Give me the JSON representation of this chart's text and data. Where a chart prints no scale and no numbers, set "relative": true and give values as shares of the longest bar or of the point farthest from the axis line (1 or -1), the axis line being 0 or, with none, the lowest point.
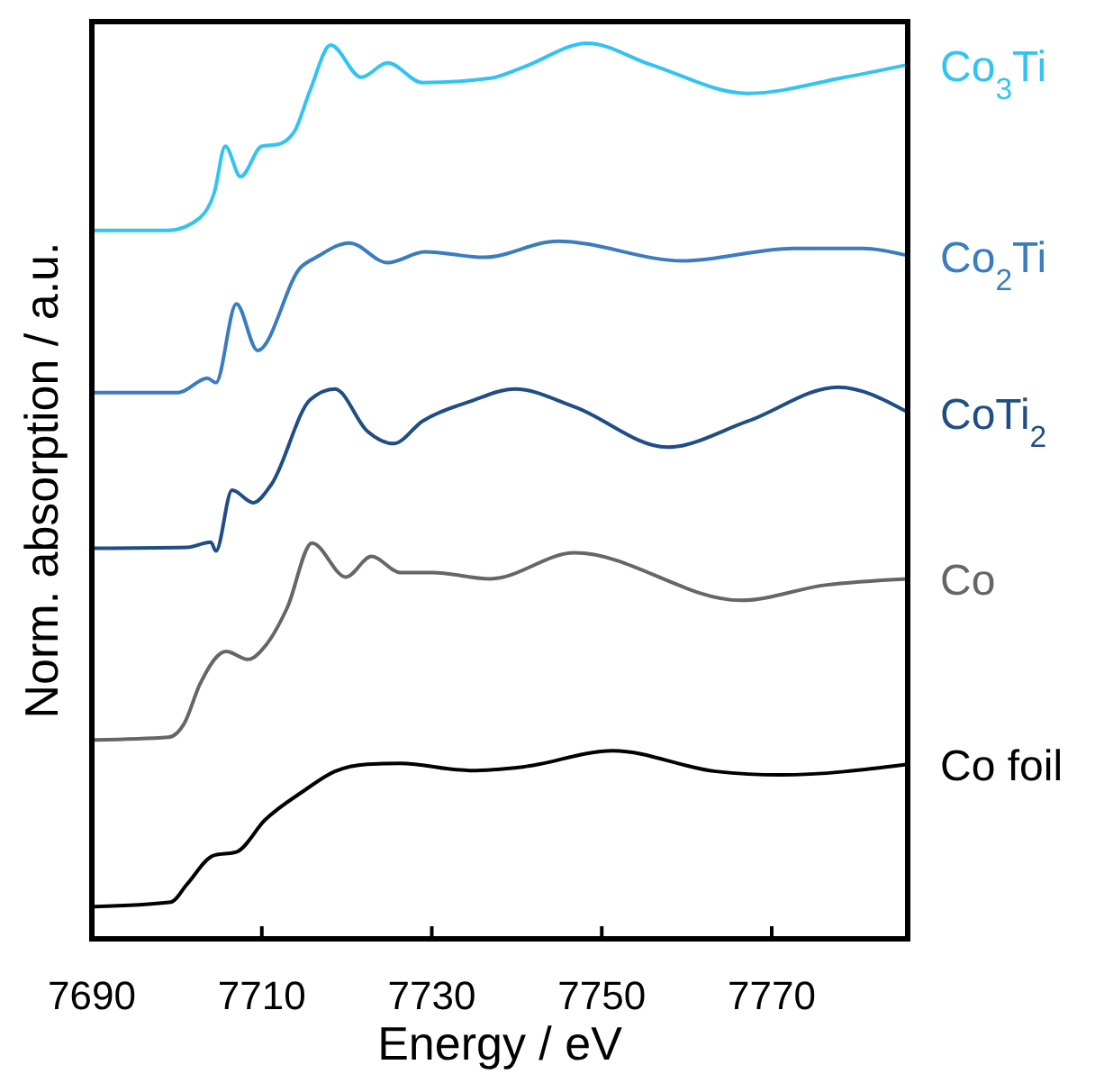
{
  "chart_data": {
    "type": "line",
    "xlabel": "Energy / eV",
    "ylabel": "Norm. absorption / a.u.",
    "relative": true,
    "xlim": [
      7690,
      7786
    ],
    "xticks": [
      7690,
      7710,
      7730,
      7750,
      7770
    ],
    "line_style": "solid",
    "marker": "none",
    "series": [
      {
        "name": "Co$_{3}$Ti",
        "color": "#33c3f3",
        "x": [
          7690.3,
          7699,
          7702.7,
          7704.4,
          7705.7,
          7707.5,
          7710,
          7711.9,
          7713.8,
          7715.7,
          7718.1,
          7721.7,
          7724.8,
          7728.9,
          7736.9,
          7740.7,
          7748.3,
          7755.8,
          7767.2,
          7778.6,
          7786
        ],
        "values": [
          0.791,
          0.791,
          0.805,
          0.833,
          0.885,
          0.851,
          0.885,
          0.887,
          0.901,
          0.948,
          0.998,
          0.962,
          0.978,
          0.956,
          0.961,
          0.973,
          1.0,
          0.976,
          0.944,
          0.962,
          0.976
        ]
      },
      {
        "name": "Co$_{2}$Ti",
        "color": "#3a7cc0",
        "x": [
          7690.3,
          7700.2,
          7703.6,
          7704.6,
          7707,
          7709.5,
          7714.6,
          7716.4,
          7720.3,
          7724.8,
          7729.2,
          7736.2,
          7744.8,
          7759.6,
          7772.5,
          7780.8,
          7786
        ],
        "values": [
          0.61,
          0.61,
          0.626,
          0.621,
          0.709,
          0.657,
          0.75,
          0.761,
          0.777,
          0.755,
          0.767,
          0.761,
          0.779,
          0.757,
          0.771,
          0.771,
          0.763
        ]
      },
      {
        "name": "CoTi$_{2}$",
        "color": "#1f4e84",
        "x": [
          7690.3,
          7701.2,
          7704,
          7704.6,
          7706.5,
          7709,
          7711.1,
          7715.7,
          7718.6,
          7722.4,
          7725.5,
          7728.9,
          7734.5,
          7739.8,
          7746.8,
          7757.7,
          7767.2,
          7777.8,
          7786
        ],
        "values": [
          0.436,
          0.437,
          0.443,
          0.433,
          0.501,
          0.487,
          0.507,
          0.602,
          0.614,
          0.567,
          0.553,
          0.578,
          0.6,
          0.614,
          0.594,
          0.549,
          0.578,
          0.616,
          0.588
        ]
      },
      {
        "name": "Co",
        "color": "#666666",
        "x": [
          7690.3,
          7699,
          7700.9,
          7702.7,
          7705.8,
          7708.4,
          7710.4,
          7713,
          7715.9,
          7719.9,
          7722.9,
          7726.3,
          7730.1,
          7736.9,
          7746.8,
          7766.4,
          7776.3,
          7786
        ],
        "values": [
          0.222,
          0.225,
          0.241,
          0.284,
          0.321,
          0.312,
          0.327,
          0.37,
          0.442,
          0.404,
          0.427,
          0.409,
          0.409,
          0.402,
          0.431,
          0.378,
          0.395,
          0.402
        ]
      },
      {
        "name": "Co foil",
        "color": "#000000",
        "x": [
          7690.3,
          7699.3,
          7701.2,
          7704.3,
          7707,
          7710.4,
          7714.9,
          7718.6,
          7722.4,
          7726.3,
          7734.5,
          7740.7,
          7751.3,
          7763.4,
          7771,
          7786
        ],
        "values": [
          0.036,
          0.041,
          0.061,
          0.093,
          0.097,
          0.133,
          0.165,
          0.187,
          0.195,
          0.196,
          0.188,
          0.192,
          0.21,
          0.187,
          0.183,
          0.195
        ]
      }
    ]
  }
}
